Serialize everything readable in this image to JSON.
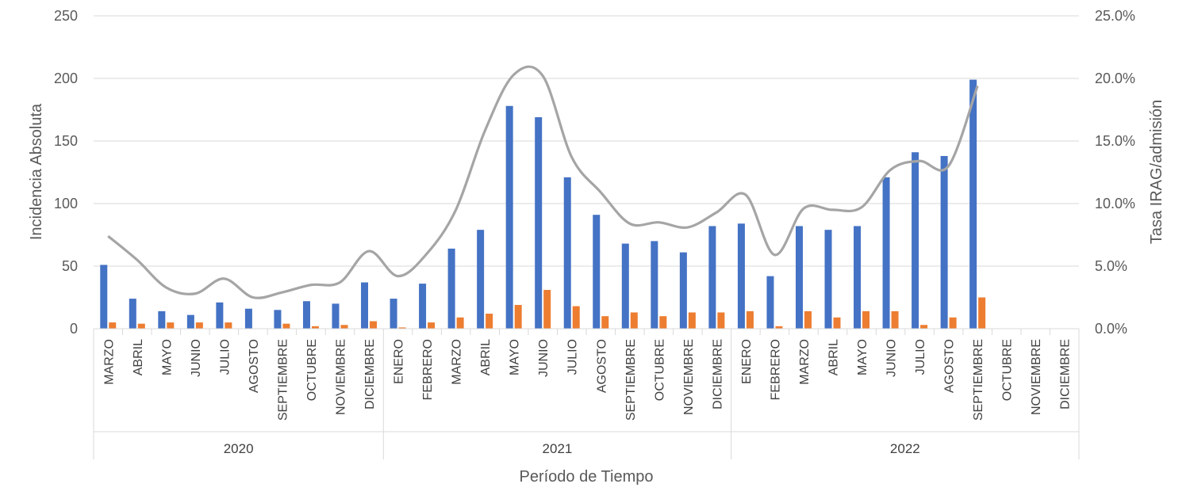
{
  "chart_data": {
    "type": "bar",
    "xlabel": "Período de Tiempo",
    "ylabel": "Incidencia Absoluta",
    "y2label": "Tasa IRAG/admisión",
    "ylim": [
      0,
      250
    ],
    "y2lim": [
      0,
      0.25
    ],
    "yticks": [
      "0",
      "50",
      "100",
      "150",
      "200",
      "250"
    ],
    "y2ticks": [
      "0.0%",
      "5.0%",
      "10.0%",
      "15.0%",
      "20.0%",
      "25.0%"
    ],
    "grid": true,
    "colors": {
      "series1": "#4472C4",
      "series2": "#ED7D31",
      "line": "#A5A5A5"
    },
    "groups": [
      {
        "label": "2020",
        "months": [
          "MARZO",
          "ABRIL",
          "MAYO",
          "JUNIO",
          "JULIO",
          "AGOSTO",
          "SEPTIEMBRE",
          "OCTUBRE",
          "NOVIEMBRE",
          "DICIEMBRE"
        ]
      },
      {
        "label": "2021",
        "months": [
          "ENERO",
          "FEBRERO",
          "MARZO",
          "ABRIL",
          "MAYO",
          "JUNIO",
          "JULIO",
          "AGOSTO",
          "SEPTIEMBRE",
          "OCTUBRE",
          "NOVIEMBRE",
          "DICIEMBRE"
        ]
      },
      {
        "label": "2022",
        "months": [
          "ENERO",
          "FEBRERO",
          "MARZO",
          "ABRIL",
          "MAYO",
          "JUNIO",
          "JULIO",
          "AGOSTO",
          "SEPTIEMBRE",
          "OCTUBRE",
          "NOVIEMBRE",
          "DICIEMBRE"
        ]
      }
    ],
    "series": [
      {
        "values": [
          51,
          24,
          14,
          11,
          21,
          16,
          15,
          22,
          20,
          37,
          24,
          36,
          64,
          79,
          178,
          169,
          121,
          91,
          68,
          70,
          61,
          82,
          84,
          42,
          82,
          79,
          82,
          121,
          141,
          138,
          199,
          null,
          null,
          null
        ]
      },
      {
        "values": [
          5,
          4,
          5,
          5,
          5,
          0,
          4,
          2,
          3,
          6,
          1,
          5,
          9,
          12,
          19,
          31,
          18,
          10,
          13,
          10,
          13,
          13,
          14,
          2,
          14,
          9,
          14,
          14,
          3,
          9,
          25,
          null,
          null,
          null
        ]
      },
      {
        "values": [
          0.074,
          0.055,
          0.033,
          0.028,
          0.04,
          0.025,
          0.029,
          0.035,
          0.037,
          0.062,
          0.042,
          0.06,
          0.095,
          0.158,
          0.203,
          0.202,
          0.137,
          0.109,
          0.084,
          0.085,
          0.081,
          0.093,
          0.107,
          0.059,
          0.096,
          0.095,
          0.097,
          0.127,
          0.134,
          0.13,
          0.194,
          null,
          null,
          null
        ]
      }
    ]
  }
}
